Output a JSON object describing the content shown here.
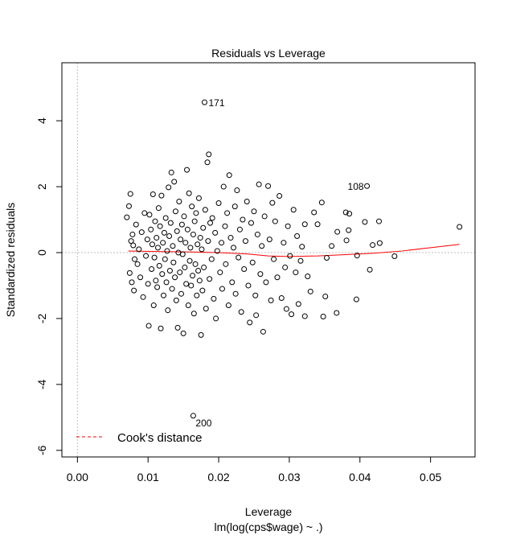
{
  "chart_data": {
    "type": "scatter",
    "title": "Residuals vs Leverage",
    "xlabel": "Leverage",
    "sublabel": "lm(log(cps$wage) ~ .)",
    "ylabel": "Standardized residuals",
    "xlim": [
      -0.0022,
      0.0563
    ],
    "ylim": [
      -6.2,
      5.76
    ],
    "xticks": [
      "0.00",
      "0.01",
      "0.02",
      "0.03",
      "0.04",
      "0.05"
    ],
    "xtick_values": [
      0,
      0.01,
      0.02,
      0.03,
      0.04,
      0.05
    ],
    "yticks": [
      "-6",
      "-4",
      "-2",
      "0",
      "2",
      "4"
    ],
    "ytick_values": [
      -6,
      -4,
      -2,
      0,
      2,
      4
    ],
    "grid": false,
    "reference_lines": {
      "x": 0,
      "y": 0,
      "color": "#bdbdbd",
      "style": "dotted"
    },
    "legend": {
      "position": "bottom-left",
      "entries": [
        {
          "label": "Cook's distance",
          "color": "#ff0000",
          "style": "dashed"
        }
      ]
    },
    "smooth_color": "#ff0000",
    "smooth": [
      [
        0.0072,
        0.05
      ],
      [
        0.012,
        0.03
      ],
      [
        0.016,
        0.02
      ],
      [
        0.02,
        0.0
      ],
      [
        0.024,
        -0.04
      ],
      [
        0.027,
        -0.1
      ],
      [
        0.03,
        -0.12
      ],
      [
        0.034,
        -0.1
      ],
      [
        0.038,
        -0.06
      ],
      [
        0.042,
        -0.02
      ],
      [
        0.046,
        0.05
      ],
      [
        0.05,
        0.15
      ],
      [
        0.0541,
        0.25
      ]
    ],
    "labeled_points": [
      {
        "label": "171",
        "x": 0.018,
        "y": 4.56
      },
      {
        "label": "108",
        "x": 0.041,
        "y": 2.02
      },
      {
        "label": "200",
        "x": 0.0164,
        "y": -4.95
      }
    ],
    "points": [
      [
        0.007,
        1.07
      ],
      [
        0.0075,
        1.78
      ],
      [
        0.0073,
        1.41
      ],
      [
        0.0076,
        0.35
      ],
      [
        0.0074,
        -0.62
      ],
      [
        0.0077,
        -0.9
      ],
      [
        0.0079,
        0.22
      ],
      [
        0.0081,
        -0.2
      ],
      [
        0.0078,
        0.55
      ],
      [
        0.008,
        -1.15
      ],
      [
        0.0083,
        0.85
      ],
      [
        0.0085,
        -0.35
      ],
      [
        0.0087,
        0.1
      ],
      [
        0.0089,
        -0.75
      ],
      [
        0.0091,
        0.62
      ],
      [
        0.0093,
        -1.35
      ],
      [
        0.0095,
        1.2
      ],
      [
        0.0097,
        -0.1
      ],
      [
        0.0099,
        0.4
      ],
      [
        0.0101,
        -2.22
      ],
      [
        0.01,
        -0.95
      ],
      [
        0.0102,
        1.15
      ],
      [
        0.0104,
        0.7
      ],
      [
        0.0105,
        -0.5
      ],
      [
        0.0106,
        0.25
      ],
      [
        0.0107,
        1.77
      ],
      [
        0.0108,
        -1.6
      ],
      [
        0.0109,
        -0.15
      ],
      [
        0.011,
        0.95
      ],
      [
        0.0111,
        -0.85
      ],
      [
        0.0112,
        0.45
      ],
      [
        0.0113,
        -1.05
      ],
      [
        0.0114,
        0.15
      ],
      [
        0.0115,
        1.35
      ],
      [
        0.0116,
        -0.4
      ],
      [
        0.0117,
        0.8
      ],
      [
        0.0118,
        -2.3
      ],
      [
        0.0119,
        1.73
      ],
      [
        0.012,
        -0.65
      ],
      [
        0.0121,
        0.3
      ],
      [
        0.0122,
        -1.3
      ],
      [
        0.0123,
        0.6
      ],
      [
        0.0124,
        -0.2
      ],
      [
        0.0125,
        1.05
      ],
      [
        0.0126,
        -0.9
      ],
      [
        0.0127,
        0.05
      ],
      [
        0.0128,
        -1.75
      ],
      [
        0.0129,
        1.98
      ],
      [
        0.013,
        0.5
      ],
      [
        0.0131,
        -0.55
      ],
      [
        0.0132,
        0.9
      ],
      [
        0.0133,
        2.43
      ],
      [
        0.0134,
        -1.1
      ],
      [
        0.0135,
        0.2
      ],
      [
        0.0136,
        -0.3
      ],
      [
        0.0137,
        2.15
      ],
      [
        0.0138,
        -0.75
      ],
      [
        0.0139,
        1.25
      ],
      [
        0.014,
        -1.45
      ],
      [
        0.0141,
        0.65
      ],
      [
        0.0142,
        -2.28
      ],
      [
        0.0143,
        0.0
      ],
      [
        0.0144,
        1.55
      ],
      [
        0.0145,
        -0.6
      ],
      [
        0.0146,
        0.4
      ],
      [
        0.0147,
        -1.25
      ],
      [
        0.0148,
        0.85
      ],
      [
        0.0149,
        -0.05
      ],
      [
        0.015,
        -2.45
      ],
      [
        0.0151,
        1.1
      ],
      [
        0.0152,
        -0.45
      ],
      [
        0.0153,
        0.3
      ],
      [
        0.0154,
        -0.95
      ],
      [
        0.0155,
        2.51
      ],
      [
        0.0156,
        0.7
      ],
      [
        0.0157,
        -1.6
      ],
      [
        0.0158,
        1.8
      ],
      [
        0.0159,
        -0.25
      ],
      [
        0.016,
        0.15
      ],
      [
        0.0161,
        -1.0
      ],
      [
        0.0162,
        1.4
      ],
      [
        0.0163,
        -0.7
      ],
      [
        0.0164,
        0.55
      ],
      [
        0.0165,
        -1.85
      ],
      [
        0.0166,
        0.95
      ],
      [
        0.0167,
        -0.35
      ],
      [
        0.0168,
        1.2
      ],
      [
        0.0169,
        -1.3
      ],
      [
        0.017,
        0.25
      ],
      [
        0.0171,
        -0.55
      ],
      [
        0.0172,
        1.65
      ],
      [
        0.0173,
        -0.85
      ],
      [
        0.0174,
        0.45
      ],
      [
        0.0175,
        -2.5
      ],
      [
        0.0176,
        0.1
      ],
      [
        0.0177,
        -1.15
      ],
      [
        0.0178,
        0.75
      ],
      [
        0.0179,
        -0.45
      ],
      [
        0.0181,
        1.3
      ],
      [
        0.0182,
        -1.7
      ],
      [
        0.0184,
        2.74
      ],
      [
        0.0185,
        0.35
      ],
      [
        0.0186,
        2.98
      ],
      [
        0.0187,
        -0.8
      ],
      [
        0.0188,
        0.9
      ],
      [
        0.019,
        -0.2
      ],
      [
        0.0191,
        1.05
      ],
      [
        0.0193,
        -1.4
      ],
      [
        0.0195,
        0.6
      ],
      [
        0.0196,
        -2.0
      ],
      [
        0.0198,
        0.05
      ],
      [
        0.02,
        1.5
      ],
      [
        0.0202,
        -0.6
      ],
      [
        0.0204,
        0.3
      ],
      [
        0.0205,
        -1.1
      ],
      [
        0.0207,
        2.0
      ],
      [
        0.0209,
        0.8
      ],
      [
        0.021,
        -0.35
      ],
      [
        0.0212,
        1.2
      ],
      [
        0.0214,
        -1.6
      ],
      [
        0.0215,
        2.35
      ],
      [
        0.0217,
        0.45
      ],
      [
        0.0219,
        -0.9
      ],
      [
        0.0221,
        0.15
      ],
      [
        0.0223,
        1.4
      ],
      [
        0.0224,
        -1.25
      ],
      [
        0.0226,
        1.89
      ],
      [
        0.0228,
        -0.15
      ],
      [
        0.023,
        0.7
      ],
      [
        0.0232,
        -1.8
      ],
      [
        0.0234,
        1.0
      ],
      [
        0.0236,
        -0.5
      ],
      [
        0.0238,
        0.35
      ],
      [
        0.024,
        1.55
      ],
      [
        0.0242,
        -1.0
      ],
      [
        0.0244,
        -2.12
      ],
      [
        0.0246,
        0.9
      ],
      [
        0.0248,
        -0.3
      ],
      [
        0.025,
        1.25
      ],
      [
        0.0252,
        -1.3
      ],
      [
        0.0253,
        -1.9
      ],
      [
        0.0255,
        0.55
      ],
      [
        0.0257,
        2.07
      ],
      [
        0.0259,
        -0.65
      ],
      [
        0.0261,
        0.2
      ],
      [
        0.0263,
        -2.4
      ],
      [
        0.0265,
        1.1
      ],
      [
        0.0267,
        -0.9
      ],
      [
        0.027,
        2.02
      ],
      [
        0.0272,
        0.4
      ],
      [
        0.0274,
        -1.45
      ],
      [
        0.0276,
        1.51
      ],
      [
        0.0278,
        -0.2
      ],
      [
        0.028,
        0.95
      ],
      [
        0.0283,
        -0.75
      ],
      [
        0.0286,
        1.72
      ],
      [
        0.0289,
        -1.38
      ],
      [
        0.0292,
        0.3
      ],
      [
        0.0294,
        -0.45
      ],
      [
        0.0296,
        -1.71
      ],
      [
        0.0298,
        0.8
      ],
      [
        0.0301,
        -0.1
      ],
      [
        0.0303,
        -1.87
      ],
      [
        0.0306,
        1.3
      ],
      [
        0.0309,
        -0.6
      ],
      [
        0.0311,
        0.5
      ],
      [
        0.0313,
        -1.56
      ],
      [
        0.0316,
        -0.25
      ],
      [
        0.0318,
        0.18
      ],
      [
        0.0322,
        0.86
      ],
      [
        0.0322,
        -1.93
      ],
      [
        0.0326,
        -0.72
      ],
      [
        0.033,
        -1.18
      ],
      [
        0.0335,
        1.22
      ],
      [
        0.034,
        0.86
      ],
      [
        0.0346,
        1.52
      ],
      [
        0.0348,
        -1.94
      ],
      [
        0.0351,
        -1.33
      ],
      [
        0.0353,
        -0.16
      ],
      [
        0.036,
        0.2
      ],
      [
        0.0367,
        -1.83
      ],
      [
        0.0368,
        0.63
      ],
      [
        0.038,
        1.22
      ],
      [
        0.0381,
        0.37
      ],
      [
        0.0384,
        0.68
      ],
      [
        0.0385,
        1.18
      ],
      [
        0.0395,
        -1.42
      ],
      [
        0.0396,
        -0.09
      ],
      [
        0.0407,
        0.93
      ],
      [
        0.0414,
        -0.52
      ],
      [
        0.0418,
        0.23
      ],
      [
        0.0427,
        0.95
      ],
      [
        0.0428,
        0.29
      ],
      [
        0.0449,
        -0.11
      ],
      [
        0.0541,
        0.78
      ]
    ]
  }
}
